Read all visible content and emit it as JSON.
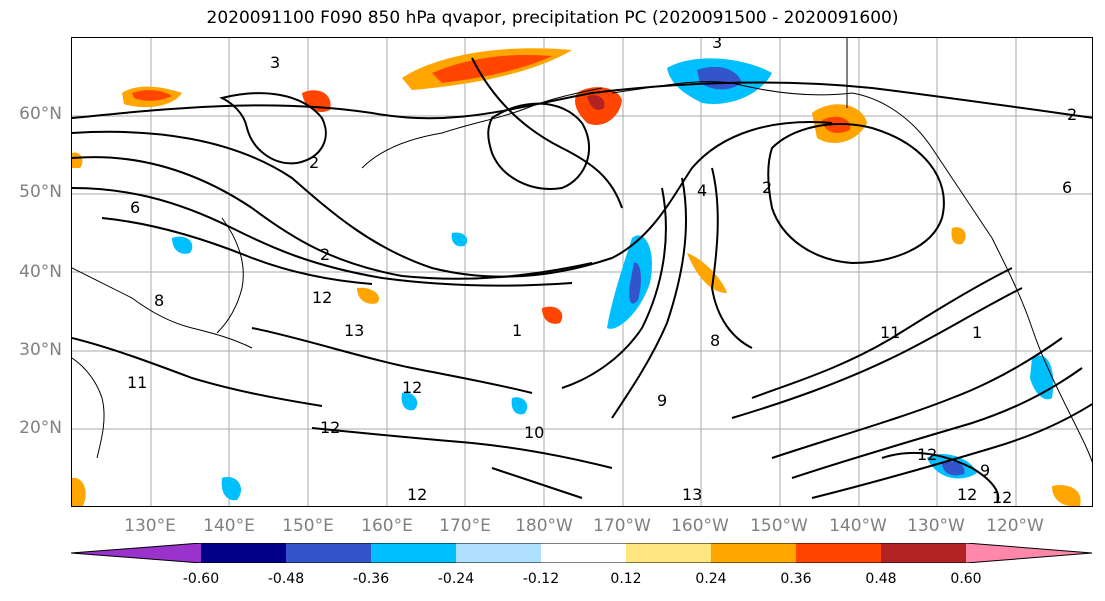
{
  "title": "2020091100 F090 850 hPa qvapor, precipitation PC (2020091500 - 2020091600)",
  "lat_labels": [
    "60°N",
    "50°N",
    "40°N",
    "30°N",
    "20°N"
  ],
  "lon_labels": [
    "130°E",
    "140°E",
    "150°E",
    "160°E",
    "170°E",
    "180°W",
    "170°W",
    "160°W",
    "150°W",
    "140°W",
    "130°W",
    "120°W"
  ],
  "contour_labels": [
    "3",
    "2",
    "2",
    "3",
    "6",
    "8",
    "2",
    "12",
    "13",
    "12",
    "12",
    "11",
    "12",
    "1",
    "8",
    "9",
    "10",
    "11",
    "12",
    "13",
    "12",
    "12",
    "9",
    "1",
    "2",
    "6",
    "4"
  ],
  "colorbar": {
    "tick_labels": [
      "-0.60",
      "-0.48",
      "-0.36",
      "-0.24",
      "-0.12",
      "0.12",
      "0.24",
      "0.36",
      "0.48",
      "0.60"
    ],
    "colors": [
      "#9933cc",
      "#00008b",
      "#3355cc",
      "#00bfff",
      "#b0e0ff",
      "#ffffff",
      "#ffe680",
      "#ffa500",
      "#ff4500",
      "#b22222",
      "#ff88aa"
    ]
  }
}
